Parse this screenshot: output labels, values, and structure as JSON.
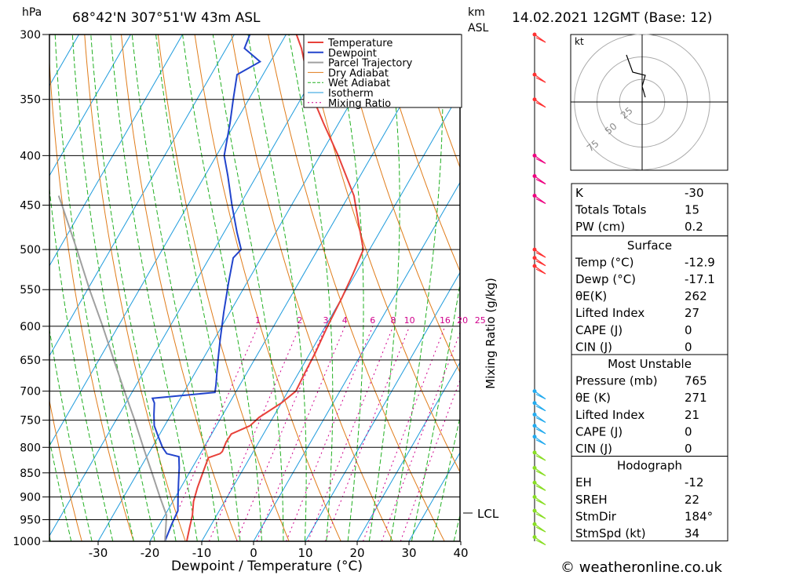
{
  "header": {
    "pressure_unit": "hPa",
    "location": "68°42'N  307°51'W  43m  ASL",
    "height_unit_km": "km",
    "height_unit_asl": "ASL",
    "datetime": "14.02.2021  12GMT  (Base: 12)"
  },
  "chart_data": {
    "type": "line",
    "subtype": "skew-T log-P thermodynamic diagram",
    "xlabel": "Dewpoint / Temperature (°C)",
    "ylabel": "hPa",
    "right_label": "Mixing Ratio (g/kg)",
    "x_ticks": [
      -30,
      -20,
      -10,
      0,
      10,
      20,
      30,
      40
    ],
    "y_ticks": [
      300,
      350,
      400,
      450,
      500,
      550,
      600,
      650,
      700,
      750,
      800,
      850,
      900,
      950,
      1000
    ],
    "xlim": [
      -40,
      40
    ],
    "ylim": [
      1000,
      300
    ],
    "mixing_ratio_labels": [
      "1",
      "2",
      "3",
      "4",
      "6",
      "8",
      "10",
      "16",
      "20",
      "25"
    ],
    "mixing_ratio_values": [
      1,
      2,
      3,
      4,
      6,
      8,
      10,
      16,
      20,
      25
    ],
    "lcl_label": "LCL",
    "lcl_pressure": 940,
    "legend": [
      "Temperature",
      "Dewpoint",
      "Parcel Trajectory",
      "Dry Adiabat",
      "Wet Adiabat",
      "Isotherm",
      "Mixing Ratio"
    ],
    "colors": {
      "temperature": "#e8413a",
      "dewpoint": "#2244cc",
      "parcel": "#a0a0a0",
      "dry_adiabat": "#e07c1a",
      "wet_adiabat": "#22b022",
      "isotherm": "#1e9bdc",
      "mixing_ratio": "#d0008c"
    },
    "series": [
      {
        "name": "Temperature",
        "pressure": [
          1000,
          970,
          940,
          910,
          880,
          850,
          820,
          812,
          808,
          790,
          775,
          760,
          745,
          720,
          700,
          670,
          640,
          600,
          560,
          530,
          500,
          470,
          440,
          400,
          370,
          350,
          330,
          310,
          300
        ],
        "value": [
          -12.9,
          -13.8,
          -14.7,
          -16.0,
          -16.8,
          -17.4,
          -18.0,
          -16.2,
          -16.0,
          -16.3,
          -16.2,
          -13.5,
          -12.7,
          -10.0,
          -8.5,
          -8.8,
          -9.0,
          -9.6,
          -10.0,
          -10.5,
          -11.2,
          -15.0,
          -19.0,
          -26.5,
          -33.0,
          -37.5,
          -41.5,
          -45.5,
          -48.0
        ]
      },
      {
        "name": "Dewpoint",
        "pressure": [
          1000,
          960,
          930,
          900,
          870,
          840,
          818,
          812,
          800,
          780,
          760,
          740,
          720,
          712,
          702,
          690,
          670,
          650,
          620,
          580,
          540,
          510,
          500,
          480,
          450,
          420,
          400,
          370,
          350,
          330,
          320,
          310,
          300
        ],
        "value": [
          -17.1,
          -17.7,
          -18.0,
          -19.5,
          -21.0,
          -22.5,
          -23.8,
          -26.5,
          -28.0,
          -30.0,
          -32.0,
          -33.3,
          -34.5,
          -35.4,
          -24.0,
          -24.6,
          -25.8,
          -27.0,
          -28.8,
          -31.2,
          -33.6,
          -35.4,
          -34.8,
          -37.5,
          -41.5,
          -45.5,
          -48.5,
          -51.0,
          -53.0,
          -55.0,
          -52.0,
          -56.5,
          -57.0
        ]
      },
      {
        "name": "Parcel Trajectory",
        "pressure": [
          1000,
          960,
          940,
          900,
          850,
          800,
          750,
          700,
          650,
          600,
          550,
          500,
          450,
          440
        ],
        "value": [
          -17.1,
          -18.8,
          -19.7,
          -23.0,
          -27.2,
          -31.7,
          -36.4,
          -41.6,
          -47.1,
          -53.0,
          -59.6,
          -66.5,
          -74.3,
          -76.0
        ]
      }
    ],
    "wind_barbs_pressure": [
      300,
      330,
      350,
      400,
      420,
      440,
      500,
      510,
      520,
      700,
      720,
      740,
      760,
      780,
      810,
      840,
      870,
      900,
      930,
      960,
      990
    ],
    "hodograph": {
      "unit_label": "kt",
      "rings": [
        "25",
        "50",
        "75"
      ]
    }
  },
  "indices_table": {
    "general": [
      {
        "label": "K",
        "value": "-30"
      },
      {
        "label": "Totals Totals",
        "value": "15"
      },
      {
        "label": "PW (cm)",
        "value": "0.2"
      }
    ],
    "surface": {
      "title": "Surface",
      "rows": [
        {
          "label": "Temp (°C)",
          "value": "-12.9"
        },
        {
          "label": "Dewp (°C)",
          "value": "-17.1"
        },
        {
          "label": "θE(K)",
          "value": "262"
        },
        {
          "label": "Lifted Index",
          "value": "27"
        },
        {
          "label": "CAPE (J)",
          "value": "0"
        },
        {
          "label": "CIN (J)",
          "value": "0"
        }
      ]
    },
    "most_unstable": {
      "title": "Most Unstable",
      "rows": [
        {
          "label": "Pressure (mb)",
          "value": "765"
        },
        {
          "label": "θE (K)",
          "value": "271"
        },
        {
          "label": "Lifted Index",
          "value": "21"
        },
        {
          "label": "CAPE (J)",
          "value": "0"
        },
        {
          "label": "CIN (J)",
          "value": "0"
        }
      ]
    },
    "hodograph": {
      "title": "Hodograph",
      "rows": [
        {
          "label": "EH",
          "value": "-12"
        },
        {
          "label": "SREH",
          "value": "22"
        },
        {
          "label": "StmDir",
          "value": "184°"
        },
        {
          "label": "StmSpd (kt)",
          "value": "34"
        }
      ]
    }
  },
  "footer": {
    "copyright": "© weatheronline.co.uk"
  }
}
